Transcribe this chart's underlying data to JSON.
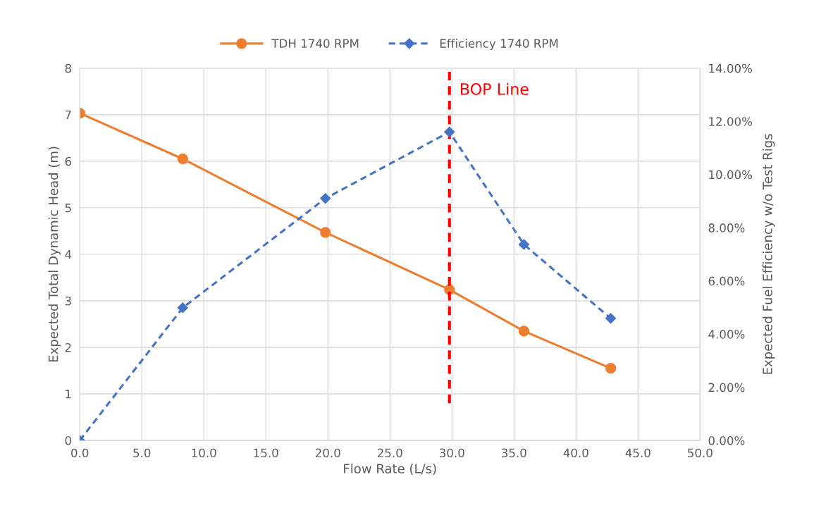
{
  "chart_data": {
    "type": "line",
    "xlabel": "Flow Rate (L/s)",
    "ylabel": "Expected Total Dynamic Head (m)",
    "y2label": "Expected Fuel Efficiency w/o Test Rigs",
    "x": [
      0,
      8.3,
      19.8,
      29.8,
      35.8,
      42.8
    ],
    "series": [
      {
        "name": "TDH 1740 RPM",
        "color": "#ed7d31",
        "values": [
          7.03,
          6.05,
          4.47,
          3.24,
          2.35,
          1.55
        ],
        "marker": "circle",
        "line_style": "solid"
      },
      {
        "name": "Efficiency 1740 RPM",
        "color": "#4472c4",
        "values": [
          0,
          4.99,
          9.1,
          11.6,
          7.37,
          4.59
        ],
        "marker": "diamond",
        "line_style": "dashed",
        "axis": "y2"
      }
    ],
    "xlim": [
      0,
      50
    ],
    "xticks": [
      {
        "value": 0,
        "label": "0.0"
      },
      {
        "value": 5,
        "label": "5.0"
      },
      {
        "value": 10,
        "label": "10.0"
      },
      {
        "value": 15,
        "label": "15.0"
      },
      {
        "value": 20,
        "label": "20.0"
      },
      {
        "value": 25,
        "label": "25.0"
      },
      {
        "value": 30,
        "label": "30.0"
      },
      {
        "value": 35,
        "label": "35.0"
      },
      {
        "value": 40,
        "label": "40.0"
      },
      {
        "value": 45,
        "label": "45.0"
      },
      {
        "value": 50,
        "label": "50.0"
      }
    ],
    "ylim": [
      0,
      8
    ],
    "yticks": [
      0,
      1,
      2,
      3,
      4,
      5,
      6,
      7,
      8
    ],
    "y2lim": [
      0,
      14
    ],
    "y2ticks": [
      {
        "value": 0,
        "label": "0.00%"
      },
      {
        "value": 2,
        "label": "2.00%"
      },
      {
        "value": 4,
        "label": "4.00%"
      },
      {
        "value": 6,
        "label": "6.00%"
      },
      {
        "value": 8,
        "label": "8.00%"
      },
      {
        "value": 10,
        "label": "10.00%"
      },
      {
        "value": 12,
        "label": "12.00%"
      },
      {
        "value": 14,
        "label": "14.00%"
      }
    ],
    "ref_lines": [
      {
        "axis": "x",
        "value": 29.8,
        "label": "BOP Line",
        "color": "#ff0000",
        "line_style": "dashed"
      }
    ],
    "grid": true,
    "legend": "top"
  }
}
